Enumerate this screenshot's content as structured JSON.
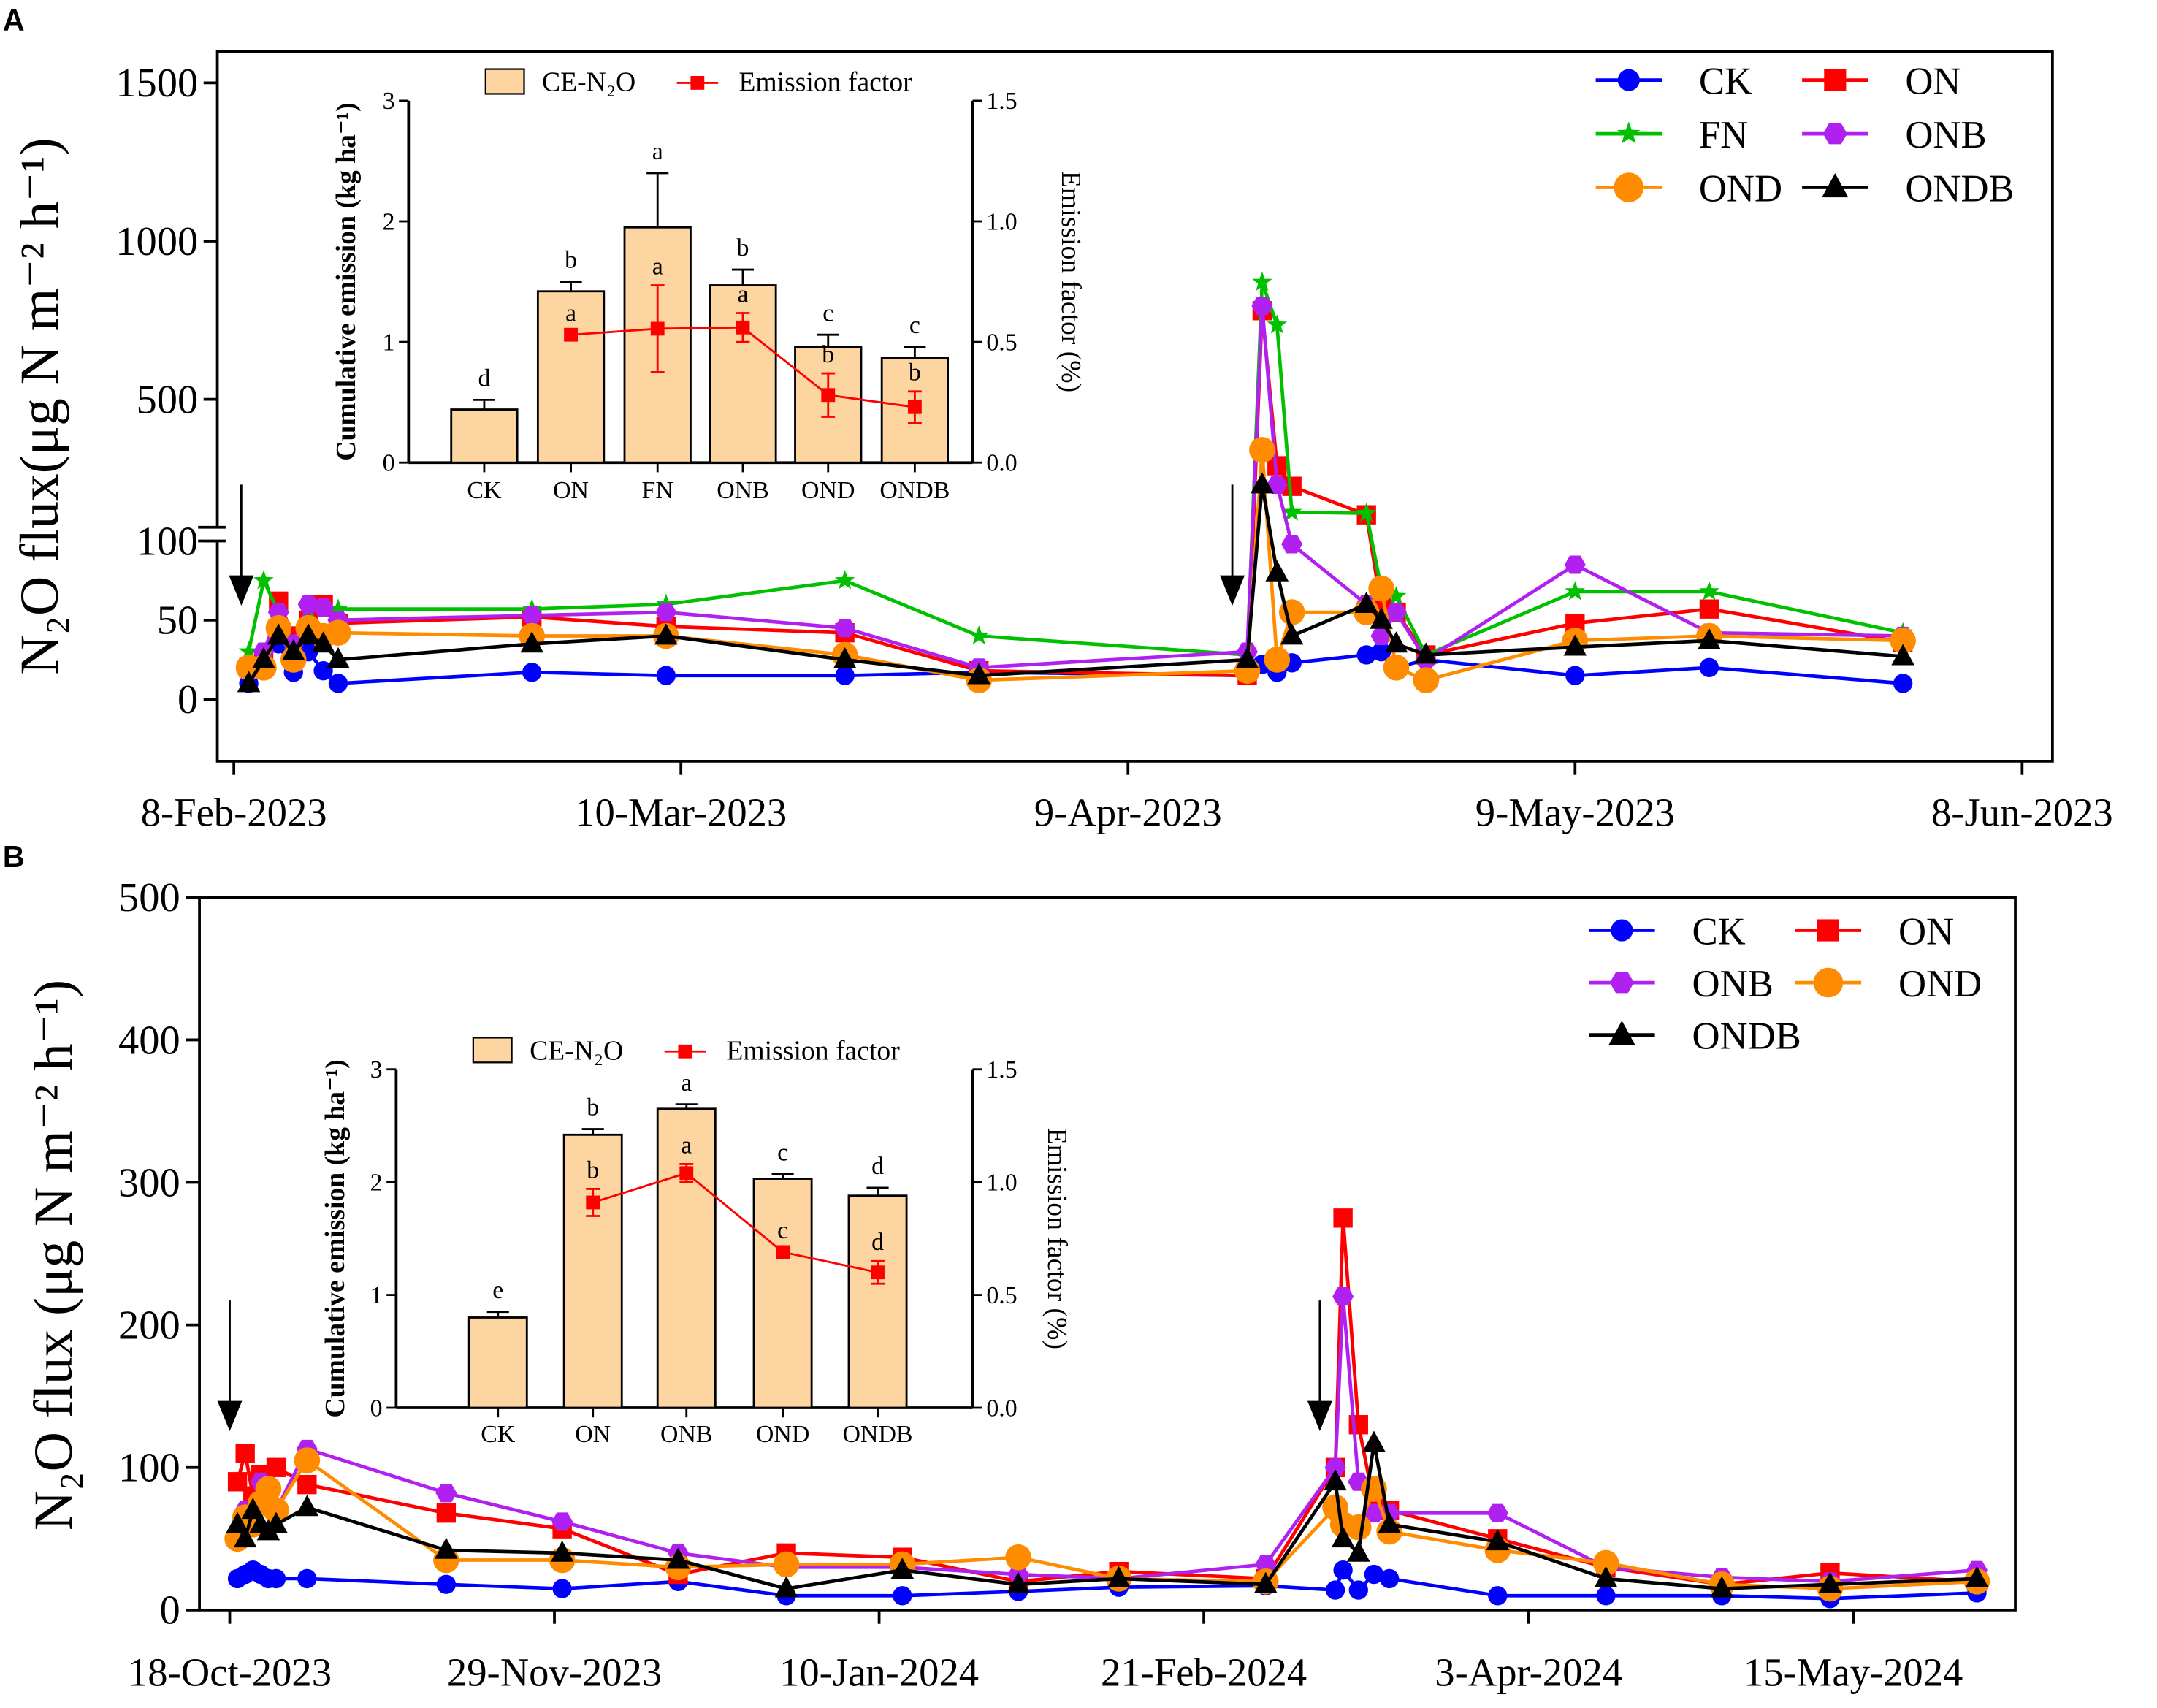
{
  "chart_data": [
    {
      "panel": "A",
      "type": "line",
      "xlabel": "",
      "x_unit": "days since 8-Feb-2023",
      "x_ticks": [
        {
          "day": 0,
          "label": "8-Feb-2023"
        },
        {
          "day": 30,
          "label": "10-Mar-2023"
        },
        {
          "day": 60,
          "label": "9-Apr-2023"
        },
        {
          "day": 90,
          "label": "9-May-2023"
        },
        {
          "day": 120,
          "label": "8-Jun-2023"
        }
      ],
      "ylabel": "N₂O flux(μg N m⁻² h⁻¹)",
      "y_axis_break": [
        100,
        100
      ],
      "y_ticks": [
        "0",
        "50",
        "100",
        "500",
        "1000",
        "1500"
      ],
      "ylim": [
        -40,
        1500
      ],
      "legend_position": "top-right",
      "fertilization_arrows_days": [
        0.5,
        67
      ],
      "x": [
        1,
        2,
        3,
        4,
        5,
        6,
        7,
        20,
        29,
        41,
        50,
        68,
        69,
        70,
        71,
        76,
        77,
        78,
        80,
        90,
        99,
        112
      ],
      "series": [
        {
          "name": "CK",
          "color": "#0000ff",
          "marker": "circle",
          "values": [
            10,
            25,
            35,
            17,
            30,
            18,
            10,
            17,
            15,
            15,
            17,
            15,
            22,
            17,
            23,
            28,
            30,
            20,
            25,
            15,
            20,
            10
          ]
        },
        {
          "name": "ON",
          "color": "#ff0000",
          "marker": "square",
          "values": [
            20,
            25,
            62,
            40,
            50,
            60,
            48,
            52,
            46,
            42,
            18,
            15,
            780,
            290,
            225,
            135,
            58,
            55,
            28,
            48,
            57,
            36
          ]
        },
        {
          "name": "FN",
          "color": "#00c000",
          "marker": "star",
          "values": [
            30,
            75,
            55,
            30,
            57,
            57,
            57,
            57,
            60,
            75,
            40,
            28,
            870,
            735,
            143,
            140,
            70,
            65,
            28,
            68,
            68,
            42
          ]
        },
        {
          "name": "ONB",
          "color": "#b020f0",
          "marker": "hexagon",
          "values": [
            20,
            30,
            55,
            35,
            60,
            58,
            50,
            53,
            55,
            45,
            20,
            30,
            795,
            230,
            98,
            60,
            40,
            55,
            25,
            85,
            42,
            40
          ]
        },
        {
          "name": "OND",
          "color": "#ff8c00",
          "marker": "circle-large",
          "values": [
            20,
            20,
            45,
            25,
            45,
            40,
            42,
            40,
            40,
            28,
            12,
            18,
            340,
            25,
            55,
            55,
            70,
            20,
            12,
            37,
            40,
            37
          ]
        },
        {
          "name": "ONDB",
          "color": "#000000",
          "marker": "triangle",
          "values": [
            10,
            25,
            40,
            30,
            40,
            35,
            25,
            35,
            40,
            25,
            15,
            25,
            230,
            80,
            40,
            60,
            50,
            35,
            28,
            33,
            37,
            27
          ]
        }
      ],
      "inset": {
        "type": "bar",
        "categories": [
          "CK",
          "ON",
          "FN",
          "ONB",
          "OND",
          "ONDB"
        ],
        "bar_values": [
          0.44,
          1.42,
          1.95,
          1.47,
          0.96,
          0.87
        ],
        "bar_errors": [
          0.08,
          0.08,
          0.45,
          0.13,
          0.1,
          0.09
        ],
        "bar_letters": [
          "d",
          "b",
          "a",
          "b",
          "c",
          "c"
        ],
        "ef_values": [
          null,
          0.53,
          0.555,
          0.56,
          0.28,
          0.23
        ],
        "ef_errors": [
          null,
          0,
          0.18,
          0.06,
          0.09,
          0.065
        ],
        "ef_letters": [
          null,
          "a",
          "a",
          "a",
          "b",
          "b"
        ],
        "bar_color": "#fdd5a0",
        "line_color": "#ff0000",
        "legend": {
          "bar": "CE-N₂O",
          "line": "Emission factor"
        },
        "ylabel": "Cumulative emission (kg ha⁻¹)",
        "y2label": "Emission factor (%)",
        "ylim": [
          0,
          3
        ],
        "y2lim": [
          0,
          1.5
        ],
        "y_ticks": [
          "0",
          "1",
          "2",
          "3"
        ],
        "y2_ticks": [
          "0.0",
          "0.5",
          "1.0",
          "1.5"
        ]
      }
    },
    {
      "panel": "B",
      "type": "line",
      "xlabel": "",
      "x_unit": "days since 18-Oct-2023",
      "x_ticks": [
        {
          "day": 0,
          "label": "18-Oct-2023"
        },
        {
          "day": 42,
          "label": "29-Nov-2023"
        },
        {
          "day": 84,
          "label": "10-Jan-2024"
        },
        {
          "day": 126,
          "label": "21-Feb-2024"
        },
        {
          "day": 168,
          "label": "3-Apr-2024"
        },
        {
          "day": 210,
          "label": "15-May-2024"
        }
      ],
      "ylabel": "N₂O flux (μg N m⁻² h⁻¹)",
      "y_ticks": [
        "0",
        "100",
        "200",
        "300",
        "400",
        "500"
      ],
      "ylim": [
        0,
        500
      ],
      "legend_position": "top-right",
      "fertilization_arrows_days": [
        0,
        141
      ],
      "x": [
        1,
        2,
        3,
        4,
        5,
        6,
        10,
        28,
        43,
        58,
        72,
        87,
        102,
        115,
        134,
        143,
        144,
        146,
        148,
        150,
        164,
        178,
        193,
        207,
        226
      ],
      "series": [
        {
          "name": "CK",
          "color": "#0000ff",
          "marker": "circle",
          "values": [
            22,
            25,
            28,
            25,
            22,
            22,
            22,
            18,
            15,
            20,
            10,
            10,
            13,
            16,
            17,
            14,
            28,
            14,
            25,
            22,
            10,
            10,
            10,
            8,
            12
          ]
        },
        {
          "name": "ON",
          "color": "#ff0000",
          "marker": "square",
          "values": [
            90,
            110,
            80,
            95,
            80,
            100,
            88,
            68,
            57,
            25,
            40,
            37,
            20,
            27,
            22,
            100,
            275,
            130,
            75,
            70,
            50,
            30,
            18,
            26,
            20
          ]
        },
        {
          "name": "ONB",
          "color": "#b020f0",
          "marker": "hexagon",
          "values": [
            48,
            70,
            60,
            90,
            80,
            70,
            113,
            82,
            62,
            40,
            30,
            30,
            25,
            22,
            32,
            100,
            220,
            90,
            68,
            68,
            68,
            30,
            23,
            20,
            28
          ]
        },
        {
          "name": "OND",
          "color": "#ff8c00",
          "marker": "circle-large",
          "values": [
            50,
            65,
            60,
            75,
            85,
            70,
            105,
            35,
            35,
            30,
            32,
            32,
            37,
            22,
            20,
            72,
            60,
            58,
            85,
            55,
            42,
            33,
            18,
            15,
            20
          ]
        },
        {
          "name": "ONDB",
          "color": "#000000",
          "marker": "triangle",
          "values": [
            60,
            50,
            70,
            60,
            55,
            60,
            72,
            42,
            40,
            35,
            15,
            28,
            18,
            22,
            18,
            90,
            50,
            40,
            117,
            60,
            48,
            22,
            15,
            18,
            22
          ]
        }
      ],
      "inset": {
        "type": "bar",
        "categories": [
          "CK",
          "ON",
          "ONB",
          "OND",
          "ONDB"
        ],
        "bar_values": [
          0.8,
          2.42,
          2.65,
          2.03,
          1.88
        ],
        "bar_errors": [
          0.05,
          0.05,
          0.04,
          0.04,
          0.07
        ],
        "bar_letters": [
          "e",
          "b",
          "a",
          "c",
          "d"
        ],
        "ef_values": [
          null,
          0.91,
          1.04,
          0.69,
          0.6
        ],
        "ef_errors": [
          null,
          0.06,
          0.04,
          0,
          0.05
        ],
        "ef_letters": [
          null,
          "b",
          "a",
          "c",
          "d"
        ],
        "bar_color": "#fdd5a0",
        "line_color": "#ff0000",
        "legend": {
          "bar": "CE-N₂O",
          "line": "Emission factor"
        },
        "ylabel": "Cumulative emission (kg ha⁻¹)",
        "y2label": "Emission factor (%)",
        "ylim": [
          0,
          3
        ],
        "y2lim": [
          0,
          1.5
        ],
        "y_ticks": [
          "0",
          "1",
          "2",
          "3"
        ],
        "y2_ticks": [
          "0.0",
          "0.5",
          "1.0",
          "1.5"
        ]
      }
    }
  ]
}
